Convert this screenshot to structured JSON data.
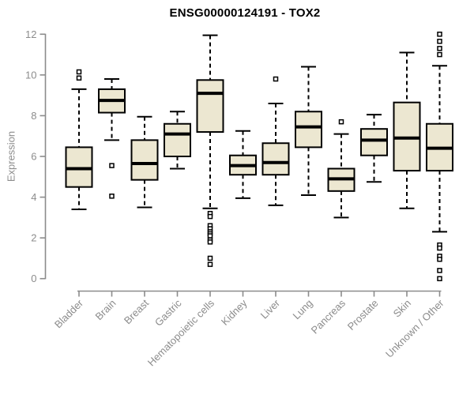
{
  "chart_data": {
    "type": "boxplot",
    "title": "ENSG00000124191 - TOX2",
    "ylabel": "Expression",
    "xlabel": "",
    "ylim": [
      0,
      12
    ],
    "yticks": [
      0,
      2,
      4,
      6,
      8,
      10,
      12
    ],
    "grid": false,
    "legend": "none",
    "colors": {
      "box_fill": "#ece7d1",
      "box_stroke": "#000000",
      "median": "#000000",
      "whisker": "#000000",
      "axis": "#8c8c8c",
      "tick_label": "#8c8c8c",
      "title": "#000000",
      "background": "#ffffff"
    },
    "categories": [
      "Bladder",
      "Brain",
      "Breast",
      "Gastric",
      "Hematopoietic cells",
      "Kidney",
      "Liver",
      "Lung",
      "Pancreas",
      "Prostate",
      "Skin",
      "Unknown / Other"
    ],
    "boxes": [
      {
        "label": "Bladder",
        "whisker_low": 3.4,
        "q1": 4.5,
        "median": 5.4,
        "q3": 6.45,
        "whisker_high": 9.3,
        "outliers": [
          9.85,
          10.15
        ]
      },
      {
        "label": "Brain",
        "whisker_low": 6.8,
        "q1": 8.15,
        "median": 8.75,
        "q3": 9.3,
        "whisker_high": 9.8,
        "outliers": [
          5.55,
          4.05
        ]
      },
      {
        "label": "Breast",
        "whisker_low": 3.5,
        "q1": 4.85,
        "median": 5.65,
        "q3": 6.8,
        "whisker_high": 7.95,
        "outliers": []
      },
      {
        "label": "Gastric",
        "whisker_low": 5.4,
        "q1": 6.0,
        "median": 7.1,
        "q3": 7.6,
        "whisker_high": 8.2,
        "outliers": []
      },
      {
        "label": "Hematopoietic cells",
        "whisker_low": 3.45,
        "q1": 7.2,
        "median": 9.1,
        "q3": 9.75,
        "whisker_high": 11.95,
        "outliers": [
          3.2,
          3.05,
          2.6,
          2.45,
          2.3,
          2.2,
          2.1,
          1.9,
          1.8,
          1.0,
          0.7
        ]
      },
      {
        "label": "Kidney",
        "whisker_low": 3.95,
        "q1": 5.1,
        "median": 5.55,
        "q3": 6.05,
        "whisker_high": 7.25,
        "outliers": []
      },
      {
        "label": "Liver",
        "whisker_low": 3.6,
        "q1": 5.1,
        "median": 5.7,
        "q3": 6.65,
        "whisker_high": 8.6,
        "outliers": [
          9.8
        ]
      },
      {
        "label": "Lung",
        "whisker_low": 4.1,
        "q1": 6.45,
        "median": 7.45,
        "q3": 8.2,
        "whisker_high": 10.4,
        "outliers": []
      },
      {
        "label": "Pancreas",
        "whisker_low": 3.0,
        "q1": 4.3,
        "median": 4.9,
        "q3": 5.4,
        "whisker_high": 7.1,
        "outliers": [
          7.7
        ]
      },
      {
        "label": "Prostate",
        "whisker_low": 4.75,
        "q1": 6.05,
        "median": 6.8,
        "q3": 7.35,
        "whisker_high": 8.05,
        "outliers": []
      },
      {
        "label": "Skin",
        "whisker_low": 3.45,
        "q1": 5.3,
        "median": 6.9,
        "q3": 8.65,
        "whisker_high": 11.1,
        "outliers": []
      },
      {
        "label": "Unknown / Other",
        "whisker_low": 2.3,
        "q1": 5.3,
        "median": 6.4,
        "q3": 7.6,
        "whisker_high": 10.45,
        "outliers": [
          12.0,
          11.65,
          11.3,
          11.0,
          1.65,
          1.5,
          1.1,
          0.95,
          0.4,
          0.0
        ]
      }
    ]
  }
}
